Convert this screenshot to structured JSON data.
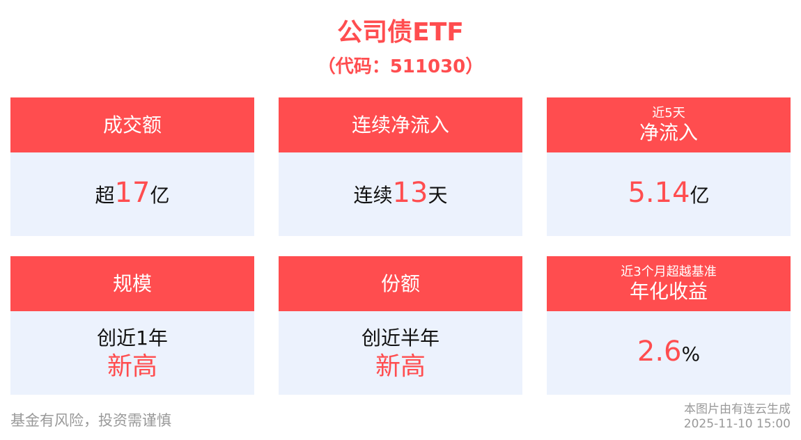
{
  "header": {
    "title": "公司债ETF",
    "code": "（代码：511030）"
  },
  "colors": {
    "accent": "#ff4d4f",
    "card_bg": "#ecf2fd"
  },
  "cards": [
    {
      "sub": "",
      "title": "成交额",
      "pre": "超",
      "value": "17",
      "post": "亿"
    },
    {
      "sub": "",
      "title": "连续净流入",
      "pre": "连续",
      "value": "13",
      "post": "天"
    },
    {
      "sub": "近5天",
      "title": "净流入",
      "pre": "",
      "value": "5.14",
      "post": "亿"
    },
    {
      "sub": "",
      "title": "规模",
      "line1": "创近1年",
      "line2": "新高"
    },
    {
      "sub": "",
      "title": "份额",
      "line1": "创近半年",
      "line2": "新高"
    },
    {
      "sub": "近3个月超越基准",
      "title": "年化收益",
      "pre": "",
      "value": "2.6",
      "post": "%"
    }
  ],
  "footer": {
    "disclaimer": "基金有风险，投资需谨慎",
    "source": "本图片由有连云生成",
    "timestamp": "2025-11-10 15:00"
  }
}
